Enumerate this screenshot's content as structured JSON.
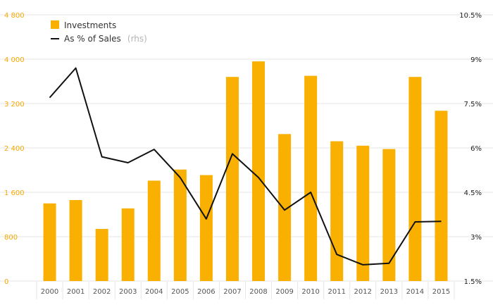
{
  "chart_data": {
    "type": "bar",
    "categories": [
      "2000",
      "2001",
      "2002",
      "2003",
      "2004",
      "2005",
      "2006",
      "2007",
      "2008",
      "2009",
      "2010",
      "2011",
      "2012",
      "2013",
      "2014",
      "2015"
    ],
    "series": [
      {
        "name": "Investments",
        "axis": "left",
        "kind": "bar",
        "color": "#f9b000",
        "values": [
          1400,
          1460,
          940,
          1310,
          1810,
          2010,
          1910,
          3680,
          3960,
          2650,
          3700,
          2520,
          2440,
          2380,
          3680,
          3070
        ]
      },
      {
        "name": "As % of Sales",
        "axis": "right",
        "kind": "line",
        "color": "#111111",
        "values": [
          7.7,
          8.7,
          5.7,
          5.5,
          5.95,
          5.0,
          3.6,
          5.8,
          5.0,
          3.9,
          4.5,
          2.4,
          2.05,
          2.1,
          3.5,
          3.52
        ]
      }
    ],
    "legend": {
      "position": "top-left",
      "items": [
        {
          "label": "Investments",
          "note": ""
        },
        {
          "label": "As % of Sales",
          "note": "(rhs)"
        }
      ]
    },
    "y_left": {
      "ylim": [
        0,
        4800
      ],
      "ticks": [
        0,
        800,
        1600,
        2400,
        3200,
        4000,
        4800
      ],
      "tick_labels": [
        "0",
        "800",
        "1 600",
        "2 400",
        "3 200",
        "4 000",
        "4 800"
      ],
      "color": "#f5a800"
    },
    "y_right": {
      "ylim": [
        1.5,
        10.5
      ],
      "ticks": [
        1.5,
        3,
        4.5,
        6,
        7.5,
        9,
        10.5
      ],
      "tick_labels": [
        "1.5%",
        "3%",
        "4.5%",
        "6%",
        "7.5%",
        "9%",
        "10.5%"
      ],
      "color": "#222222"
    },
    "grid": true,
    "title": "",
    "xlabel": "",
    "ylabel": ""
  }
}
